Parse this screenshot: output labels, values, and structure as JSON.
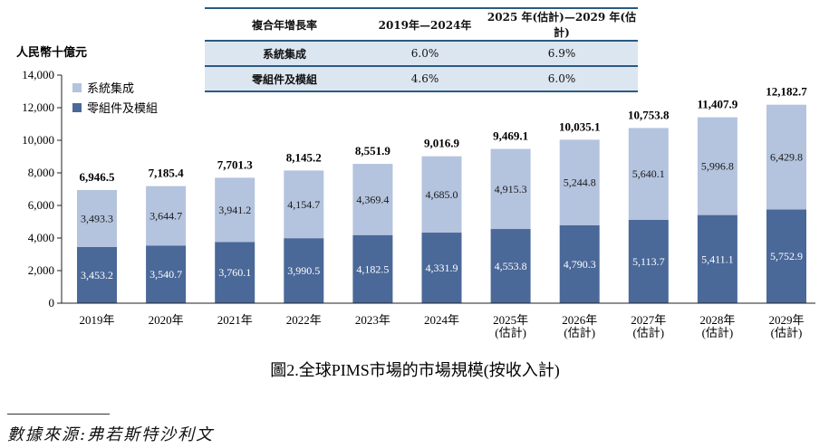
{
  "cagr_table": {
    "headers": [
      "複合年增長率",
      "2019年—2024年",
      "2025 年(估計)—2029 年(估計)"
    ],
    "rows": [
      {
        "label": "系統集成",
        "v1": "6.0%",
        "v2": "6.9%"
      },
      {
        "label": "零組件及模組",
        "v1": "4.6%",
        "v2": "6.0%"
      }
    ]
  },
  "chart_data": {
    "type": "bar",
    "stacked": true,
    "title": "圖2.全球PIMS市場的市場規模(按收入計)",
    "ylabel": "人民幣十億元",
    "ylim": [
      0,
      14000
    ],
    "yticks": [
      "0",
      "2,000",
      "4,000",
      "6,000",
      "8,000",
      "10,000",
      "12,000",
      "14,000"
    ],
    "categories": [
      [
        "2019年"
      ],
      [
        "2020年"
      ],
      [
        "2021年"
      ],
      [
        "2022年"
      ],
      [
        "2023年"
      ],
      [
        "2024年"
      ],
      [
        "2025年",
        "(估計)"
      ],
      [
        "2026年",
        "(估計)"
      ],
      [
        "2027年",
        "(估計)"
      ],
      [
        "2028年",
        "(估計)"
      ],
      [
        "2029年",
        "(估計)"
      ]
    ],
    "series": [
      {
        "name": "零組件及模組",
        "color": "#4a6898",
        "values": [
          3453.2,
          3540.7,
          3760.1,
          3990.5,
          4182.5,
          4331.9,
          4553.8,
          4790.3,
          5113.7,
          5411.1,
          5752.9
        ],
        "labels": [
          "3,453.2",
          "3,540.7",
          "3,760.1",
          "3,990.5",
          "4,182.5",
          "4,331.9",
          "4,553.8",
          "4,790.3",
          "5,113.7",
          "5,411.1",
          "5,752.9"
        ]
      },
      {
        "name": "系統集成",
        "color": "#b4c3de",
        "values": [
          3493.3,
          3644.7,
          3941.2,
          4154.7,
          4369.4,
          4685.0,
          4915.3,
          5244.8,
          5640.1,
          5996.8,
          6429.8
        ],
        "labels": [
          "3,493.3",
          "3,644.7",
          "3,941.2",
          "4,154.7",
          "4,369.4",
          "4,685.0",
          "4,915.3",
          "5,244.8",
          "5,640.1",
          "5,996.8",
          "6,429.8"
        ]
      }
    ],
    "totals": [
      "6,946.5",
      "7,185.4",
      "7,701.3",
      "8,145.2",
      "8,551.9",
      "9,016.9",
      "9,469.1",
      "10,035.1",
      "10,753.8",
      "11,407.9",
      "12,182.7"
    ],
    "legend": [
      {
        "label": "系統集成",
        "color": "#b4c3de"
      },
      {
        "label": "零組件及模組",
        "color": "#4a6898"
      }
    ],
    "legend_position": "top-left"
  },
  "source": "數據來源:弗若斯特沙利文"
}
